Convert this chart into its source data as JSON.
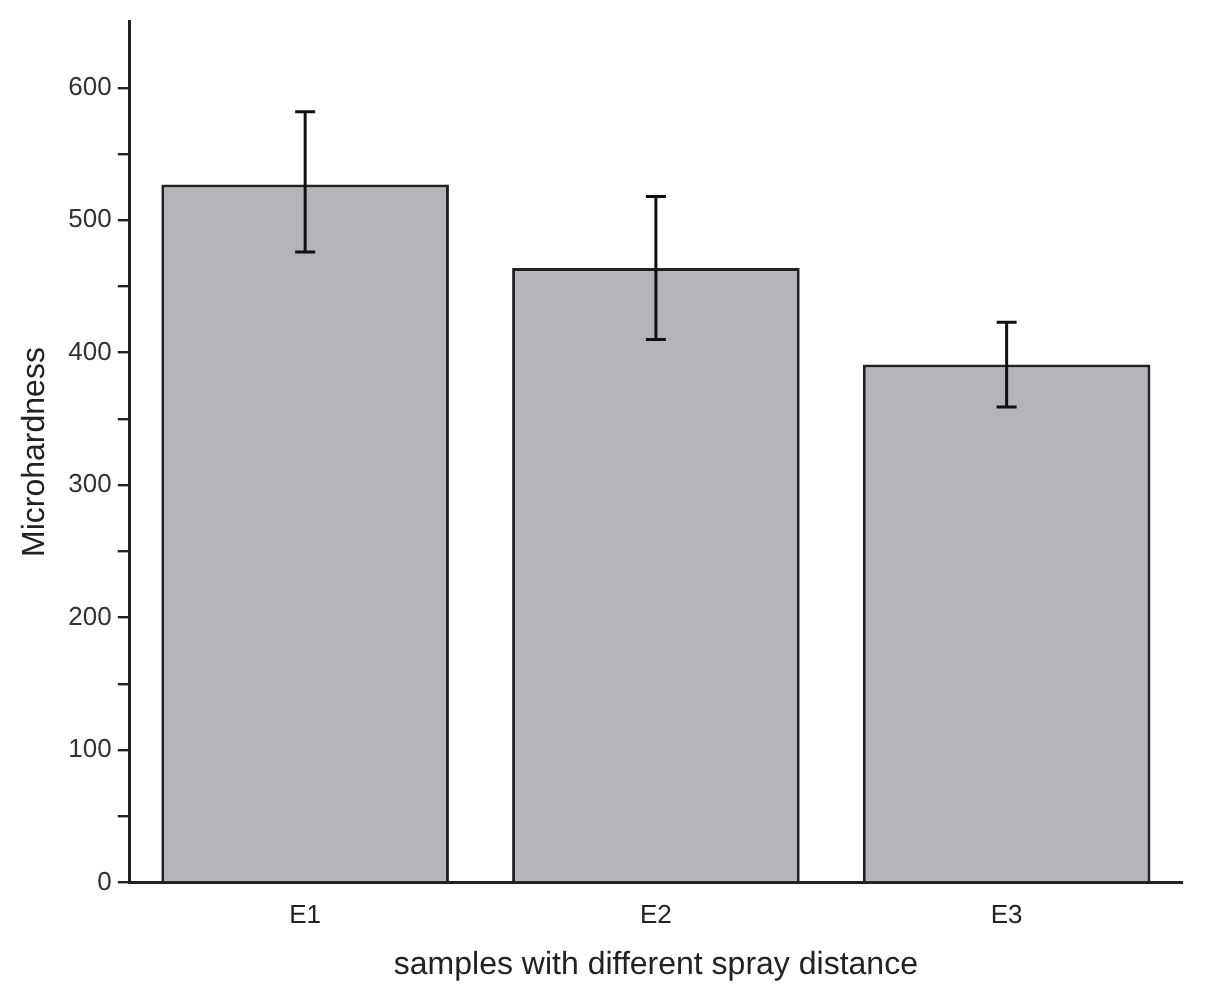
{
  "chart_data": {
    "type": "bar",
    "xlabel": "samples with different spray distance",
    "ylabel": "Microhardness",
    "categories": [
      "E1",
      "E2",
      "E3"
    ],
    "values": [
      527,
      464,
      391
    ],
    "errors": [
      [
        476,
        582
      ],
      [
        410,
        518
      ],
      [
        359,
        423
      ]
    ],
    "color": "#b4b5b9",
    "ylim": [
      0,
      650
    ],
    "yticks": [
      0,
      {
        "value": 50,
        "label": null
      },
      100,
      {
        "value": 150,
        "label": null
      },
      200,
      {
        "value": 250,
        "label": null
      },
      300,
      {
        "value": 350,
        "label": null
      },
      400,
      {
        "value": 450,
        "label": null
      },
      500,
      {
        "value": 550,
        "label": null
      },
      600
    ],
    "grid": false,
    "legend": false
  }
}
